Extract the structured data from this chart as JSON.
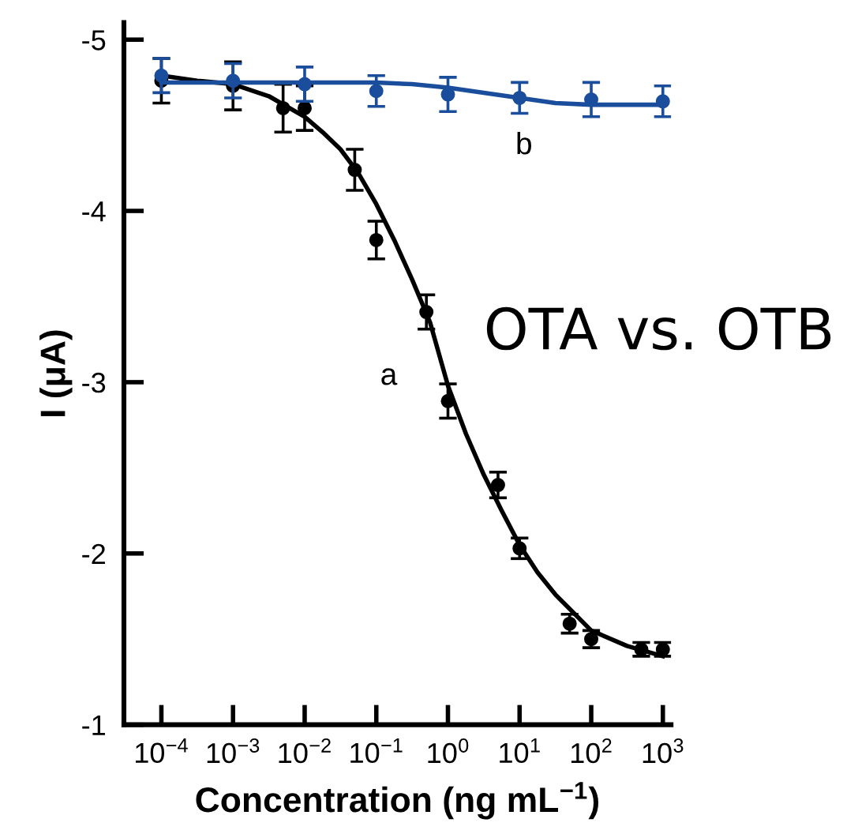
{
  "chart_data": {
    "type": "scatter",
    "xlabel": "Concentration (ng mL$^{−1}$)",
    "ylabel": "I (μA)",
    "log": "x",
    "xlim": [
      3e-05,
      1300
    ],
    "ylim": [
      -1,
      -5.1
    ],
    "xticks": [
      {
        "value": 0.0001,
        "label": "10$^{−4}$"
      },
      {
        "value": 0.001,
        "label": "10$^{−3}$"
      },
      {
        "value": 0.01,
        "label": "10$^{−2}$"
      },
      {
        "value": 0.1,
        "label": "10$^{−1}$"
      },
      {
        "value": 1,
        "label": "10$^{0}$"
      },
      {
        "value": 10,
        "label": "10$^{1}$"
      },
      {
        "value": 100,
        "label": "10$^{2}$"
      },
      {
        "value": 1000,
        "label": "10$^{3}$"
      }
    ],
    "yticks": [
      -5,
      -4,
      -3,
      -2,
      -1
    ],
    "grid": false,
    "legend": false,
    "series": [
      {
        "marker": "circle",
        "color": "#000000",
        "x": [
          0.0001,
          0.001,
          0.005,
          0.01,
          0.05,
          0.1,
          0.5,
          1,
          5,
          10,
          50,
          100,
          500,
          1000
        ],
        "values": [
          -4.76,
          -4.73,
          -4.6,
          -4.6,
          -4.24,
          -3.83,
          -3.41,
          -2.89,
          -2.4,
          -2.03,
          -1.59,
          -1.5,
          -1.44,
          -1.44
        ],
        "errors": [
          0.13,
          0.14,
          0.14,
          0.13,
          0.12,
          0.11,
          0.1,
          0.1,
          0.075,
          0.06,
          0.055,
          0.05,
          0.04,
          0.04
        ]
      },
      {
        "type": "line",
        "name": "a",
        "line_style": "solid",
        "color": "#000000",
        "x": [
          0.0001,
          0.000316,
          0.001,
          0.00316,
          0.01,
          0.0178,
          0.0316,
          0.0562,
          0.1,
          0.178,
          0.316,
          0.562,
          1,
          1.78,
          3.16,
          5.62,
          10,
          17.8,
          31.6,
          100,
          316,
          1000
        ],
        "values": [
          -4.79,
          -4.76,
          -4.74,
          -4.67,
          -4.55,
          -4.46,
          -4.36,
          -4.22,
          -4.04,
          -3.83,
          -3.6,
          -3.35,
          -2.98,
          -2.7,
          -2.46,
          -2.25,
          -2.05,
          -1.89,
          -1.76,
          -1.55,
          -1.46,
          -1.4
        ]
      },
      {
        "marker": "circle",
        "color": "#1a4d9b",
        "x": [
          0.0001,
          0.001,
          0.01,
          0.1,
          1,
          10,
          100,
          1000
        ],
        "values": [
          -4.79,
          -4.76,
          -4.74,
          -4.7,
          -4.68,
          -4.66,
          -4.65,
          -4.64
        ],
        "errors": [
          0.1,
          0.1,
          0.1,
          0.09,
          0.1,
          0.09,
          0.1,
          0.09
        ]
      },
      {
        "type": "line",
        "name": "b",
        "line_style": "solid",
        "color": "#1a4d9b",
        "x": [
          0.0001,
          0.001,
          0.01,
          0.1,
          0.316,
          1,
          3.16,
          10,
          31.6,
          100,
          316,
          1000
        ],
        "values": [
          -4.75,
          -4.75,
          -4.75,
          -4.75,
          -4.74,
          -4.72,
          -4.69,
          -4.66,
          -4.63,
          -4.62,
          -4.62,
          -4.62
        ]
      }
    ],
    "annotations": [
      "OTA vs. OTB"
    ]
  }
}
